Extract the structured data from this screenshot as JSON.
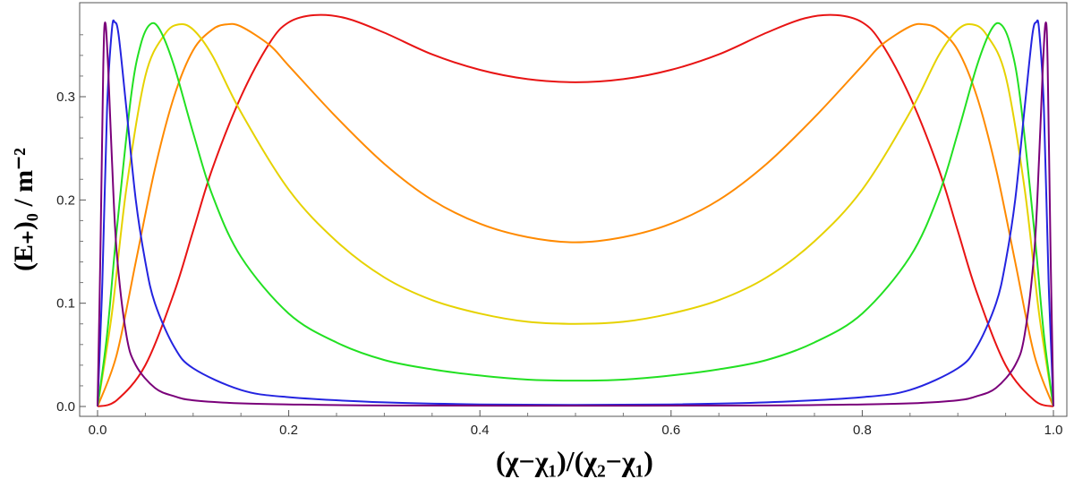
{
  "chart_data": {
    "type": "line",
    "xlabel": "(χ−χ₁)/(χ₂−χ₁)",
    "ylabel": "(E₊)₀ / m⁻²",
    "xlim": [
      0,
      1
    ],
    "ylim": [
      -0.008,
      0.383
    ],
    "x_ticks": [
      0.0,
      0.2,
      0.4,
      0.6,
      0.8,
      1.0
    ],
    "x_tick_labels": [
      "0.0",
      "0.2",
      "0.4",
      "0.6",
      "0.8",
      "1.0"
    ],
    "y_ticks": [
      0.0,
      0.1,
      0.2,
      0.3
    ],
    "y_tick_labels": [
      "0.0",
      "0.1",
      "0.2",
      "0.3"
    ],
    "grid": false,
    "series": [
      {
        "color": "#e81414",
        "points": [
          [
            0,
            0
          ],
          [
            0.02,
            0.006
          ],
          [
            0.05,
            0.04
          ],
          [
            0.08,
            0.11
          ],
          [
            0.1,
            0.17
          ],
          [
            0.12,
            0.23
          ],
          [
            0.15,
            0.3
          ],
          [
            0.18,
            0.352
          ],
          [
            0.2,
            0.372
          ],
          [
            0.227,
            0.379
          ],
          [
            0.26,
            0.376
          ],
          [
            0.3,
            0.362
          ],
          [
            0.35,
            0.341
          ],
          [
            0.4,
            0.326
          ],
          [
            0.45,
            0.317
          ],
          [
            0.5,
            0.314
          ],
          [
            0.55,
            0.317
          ],
          [
            0.6,
            0.326
          ],
          [
            0.65,
            0.341
          ],
          [
            0.7,
            0.362
          ],
          [
            0.74,
            0.376
          ],
          [
            0.773,
            0.379
          ],
          [
            0.8,
            0.372
          ],
          [
            0.82,
            0.352
          ],
          [
            0.85,
            0.3
          ],
          [
            0.88,
            0.23
          ],
          [
            0.9,
            0.17
          ],
          [
            0.92,
            0.11
          ],
          [
            0.95,
            0.04
          ],
          [
            0.98,
            0.006
          ],
          [
            1,
            0
          ]
        ]
      },
      {
        "color": "#ff8a00",
        "points": [
          [
            0,
            0
          ],
          [
            0.02,
            0.05
          ],
          [
            0.04,
            0.14
          ],
          [
            0.06,
            0.23
          ],
          [
            0.08,
            0.3
          ],
          [
            0.1,
            0.345
          ],
          [
            0.12,
            0.365
          ],
          [
            0.135,
            0.37
          ],
          [
            0.15,
            0.368
          ],
          [
            0.18,
            0.35
          ],
          [
            0.2,
            0.33
          ],
          [
            0.25,
            0.28
          ],
          [
            0.3,
            0.235
          ],
          [
            0.35,
            0.2
          ],
          [
            0.4,
            0.177
          ],
          [
            0.45,
            0.164
          ],
          [
            0.5,
            0.159
          ],
          [
            0.55,
            0.164
          ],
          [
            0.6,
            0.177
          ],
          [
            0.65,
            0.2
          ],
          [
            0.7,
            0.235
          ],
          [
            0.75,
            0.28
          ],
          [
            0.8,
            0.33
          ],
          [
            0.82,
            0.35
          ],
          [
            0.85,
            0.368
          ],
          [
            0.865,
            0.37
          ],
          [
            0.88,
            0.365
          ],
          [
            0.9,
            0.345
          ],
          [
            0.92,
            0.3
          ],
          [
            0.94,
            0.23
          ],
          [
            0.96,
            0.14
          ],
          [
            0.98,
            0.05
          ],
          [
            1,
            0
          ]
        ]
      },
      {
        "color": "#e6d200",
        "points": [
          [
            0,
            0
          ],
          [
            0.015,
            0.09
          ],
          [
            0.03,
            0.21
          ],
          [
            0.05,
            0.32
          ],
          [
            0.07,
            0.36
          ],
          [
            0.085,
            0.37
          ],
          [
            0.1,
            0.365
          ],
          [
            0.12,
            0.34
          ],
          [
            0.15,
            0.285
          ],
          [
            0.2,
            0.21
          ],
          [
            0.25,
            0.16
          ],
          [
            0.3,
            0.125
          ],
          [
            0.35,
            0.103
          ],
          [
            0.4,
            0.09
          ],
          [
            0.45,
            0.082
          ],
          [
            0.5,
            0.08
          ],
          [
            0.55,
            0.082
          ],
          [
            0.6,
            0.09
          ],
          [
            0.65,
            0.103
          ],
          [
            0.7,
            0.125
          ],
          [
            0.75,
            0.16
          ],
          [
            0.8,
            0.21
          ],
          [
            0.85,
            0.285
          ],
          [
            0.88,
            0.34
          ],
          [
            0.9,
            0.365
          ],
          [
            0.915,
            0.37
          ],
          [
            0.93,
            0.36
          ],
          [
            0.95,
            0.32
          ],
          [
            0.97,
            0.21
          ],
          [
            0.985,
            0.09
          ],
          [
            1,
            0
          ]
        ]
      },
      {
        "color": "#22e022",
        "points": [
          [
            0,
            0
          ],
          [
            0.01,
            0.07
          ],
          [
            0.02,
            0.17
          ],
          [
            0.035,
            0.3
          ],
          [
            0.045,
            0.35
          ],
          [
            0.055,
            0.37
          ],
          [
            0.065,
            0.365
          ],
          [
            0.08,
            0.33
          ],
          [
            0.1,
            0.265
          ],
          [
            0.12,
            0.205
          ],
          [
            0.15,
            0.145
          ],
          [
            0.2,
            0.09
          ],
          [
            0.25,
            0.062
          ],
          [
            0.3,
            0.045
          ],
          [
            0.35,
            0.036
          ],
          [
            0.4,
            0.03
          ],
          [
            0.45,
            0.026
          ],
          [
            0.5,
            0.025
          ],
          [
            0.55,
            0.026
          ],
          [
            0.6,
            0.03
          ],
          [
            0.65,
            0.036
          ],
          [
            0.7,
            0.045
          ],
          [
            0.75,
            0.062
          ],
          [
            0.8,
            0.09
          ],
          [
            0.85,
            0.145
          ],
          [
            0.88,
            0.205
          ],
          [
            0.9,
            0.265
          ],
          [
            0.92,
            0.33
          ],
          [
            0.935,
            0.365
          ],
          [
            0.945,
            0.37
          ],
          [
            0.955,
            0.35
          ],
          [
            0.965,
            0.3
          ],
          [
            0.98,
            0.17
          ],
          [
            0.99,
            0.07
          ],
          [
            1,
            0
          ]
        ]
      },
      {
        "color": "#2424e0",
        "points": [
          [
            0,
            0
          ],
          [
            0.005,
            0.12
          ],
          [
            0.01,
            0.29
          ],
          [
            0.015,
            0.365
          ],
          [
            0.018,
            0.372
          ],
          [
            0.022,
            0.36
          ],
          [
            0.03,
            0.29
          ],
          [
            0.04,
            0.2
          ],
          [
            0.05,
            0.14
          ],
          [
            0.06,
            0.1
          ],
          [
            0.08,
            0.058
          ],
          [
            0.1,
            0.037
          ],
          [
            0.15,
            0.016
          ],
          [
            0.2,
            0.009
          ],
          [
            0.3,
            0.004
          ],
          [
            0.4,
            0.002
          ],
          [
            0.5,
            0.0015
          ],
          [
            0.6,
            0.002
          ],
          [
            0.7,
            0.004
          ],
          [
            0.8,
            0.009
          ],
          [
            0.85,
            0.016
          ],
          [
            0.9,
            0.037
          ],
          [
            0.92,
            0.058
          ],
          [
            0.94,
            0.1
          ],
          [
            0.95,
            0.14
          ],
          [
            0.96,
            0.2
          ],
          [
            0.97,
            0.29
          ],
          [
            0.978,
            0.36
          ],
          [
            0.982,
            0.372
          ],
          [
            0.985,
            0.365
          ],
          [
            0.99,
            0.29
          ],
          [
            0.995,
            0.12
          ],
          [
            1,
            0
          ]
        ]
      },
      {
        "color": "#7a007a",
        "points": [
          [
            0,
            0
          ],
          [
            0.003,
            0.15
          ],
          [
            0.006,
            0.33
          ],
          [
            0.008,
            0.372
          ],
          [
            0.011,
            0.33
          ],
          [
            0.015,
            0.24
          ],
          [
            0.02,
            0.15
          ],
          [
            0.03,
            0.07
          ],
          [
            0.04,
            0.04
          ],
          [
            0.06,
            0.018
          ],
          [
            0.08,
            0.01
          ],
          [
            0.1,
            0.006
          ],
          [
            0.15,
            0.003
          ],
          [
            0.2,
            0.002
          ],
          [
            0.3,
            0.001
          ],
          [
            0.5,
            0.0008
          ],
          [
            0.7,
            0.001
          ],
          [
            0.8,
            0.002
          ],
          [
            0.85,
            0.003
          ],
          [
            0.9,
            0.006
          ],
          [
            0.92,
            0.01
          ],
          [
            0.94,
            0.018
          ],
          [
            0.96,
            0.04
          ],
          [
            0.97,
            0.07
          ],
          [
            0.98,
            0.15
          ],
          [
            0.985,
            0.24
          ],
          [
            0.989,
            0.33
          ],
          [
            0.992,
            0.372
          ],
          [
            0.994,
            0.33
          ],
          [
            0.997,
            0.15
          ],
          [
            1,
            0
          ]
        ]
      }
    ]
  }
}
